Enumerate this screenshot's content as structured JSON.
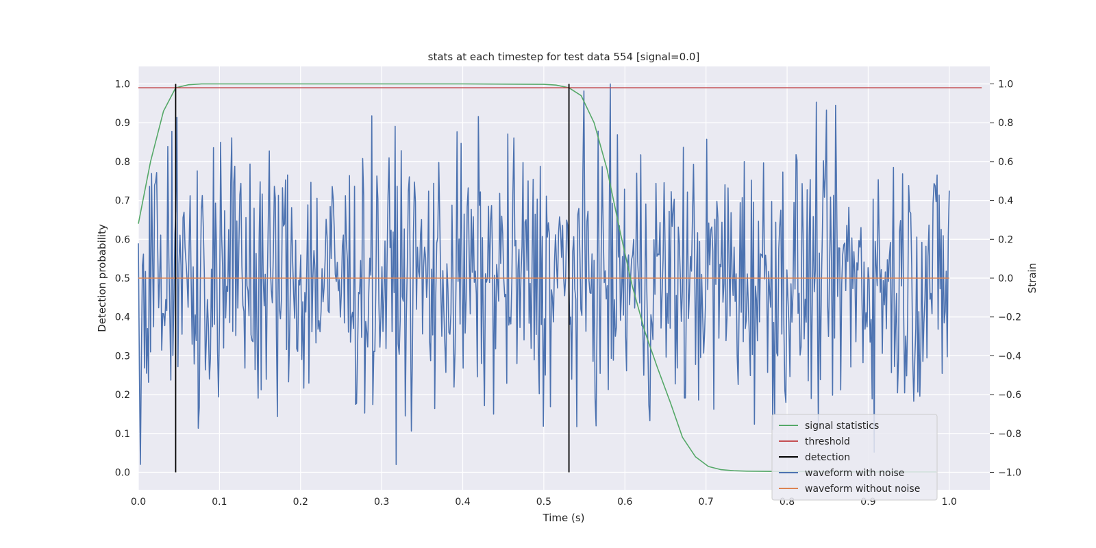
{
  "chart_data": {
    "type": "line",
    "title": "stats at each timestep for test data 554 [signal=0.0]",
    "xlabel": "Time (s)",
    "ylabel_left": "Detection probability",
    "ylabel_right": "Strain",
    "xlim": [
      0.0,
      1.05
    ],
    "ylim_left": [
      -0.045,
      1.045
    ],
    "ylim_right": [
      -1.09,
      1.09
    ],
    "xticks": [
      "0.0",
      "0.1",
      "0.2",
      "0.3",
      "0.4",
      "0.5",
      "0.6",
      "0.7",
      "0.8",
      "0.9",
      "1.0"
    ],
    "yticks_left": [
      "0.0",
      "0.1",
      "0.2",
      "0.3",
      "0.4",
      "0.5",
      "0.6",
      "0.7",
      "0.8",
      "0.9",
      "1.0"
    ],
    "yticks_right": [
      "−1.0",
      "−0.8",
      "−0.6",
      "−0.4",
      "−0.2",
      "0.0",
      "0.2",
      "0.4",
      "0.6",
      "0.8",
      "1.0"
    ],
    "grid": true,
    "legend_position": "lower-right",
    "series": [
      {
        "name": "signal statistics",
        "color": "#55a868",
        "axis": "left",
        "x": [
          0.0,
          0.015,
          0.031,
          0.046,
          0.062,
          0.078,
          0.1,
          0.2,
          0.3,
          0.4,
          0.5,
          0.515,
          0.531,
          0.546,
          0.562,
          0.578,
          0.593,
          0.609,
          0.625,
          0.64,
          0.656,
          0.671,
          0.687,
          0.703,
          0.718,
          0.734,
          0.75,
          0.8,
          0.9,
          0.984
        ],
        "y": [
          0.64,
          0.8,
          0.93,
          0.99,
          0.998,
          1.0,
          1.0,
          1.0,
          1.0,
          1.0,
          0.999,
          0.997,
          0.99,
          0.97,
          0.9,
          0.78,
          0.63,
          0.48,
          0.36,
          0.27,
          0.18,
          0.09,
          0.04,
          0.015,
          0.007,
          0.004,
          0.003,
          0.002,
          0.001,
          0.001
        ]
      },
      {
        "name": "threshold",
        "color": "#c44e52",
        "axis": "left",
        "x": [
          0.0,
          1.04
        ],
        "y": [
          0.99,
          0.99
        ]
      },
      {
        "name": "detection",
        "color": "#000000",
        "axis": "left",
        "vlines": [
          0.046,
          0.531
        ],
        "ymin": 0.0,
        "ymax": 1.0
      },
      {
        "name": "waveform with noise",
        "color": "#4c72b0",
        "axis": "right",
        "x_range": [
          0.0,
          1.0
        ],
        "points": 800,
        "y_range": [
          -0.96,
          1.0
        ]
      },
      {
        "name": "waveform without noise",
        "color": "#dd8452",
        "axis": "right",
        "x": [
          0.0,
          1.0
        ],
        "y": [
          0.0,
          0.0
        ]
      }
    ]
  }
}
